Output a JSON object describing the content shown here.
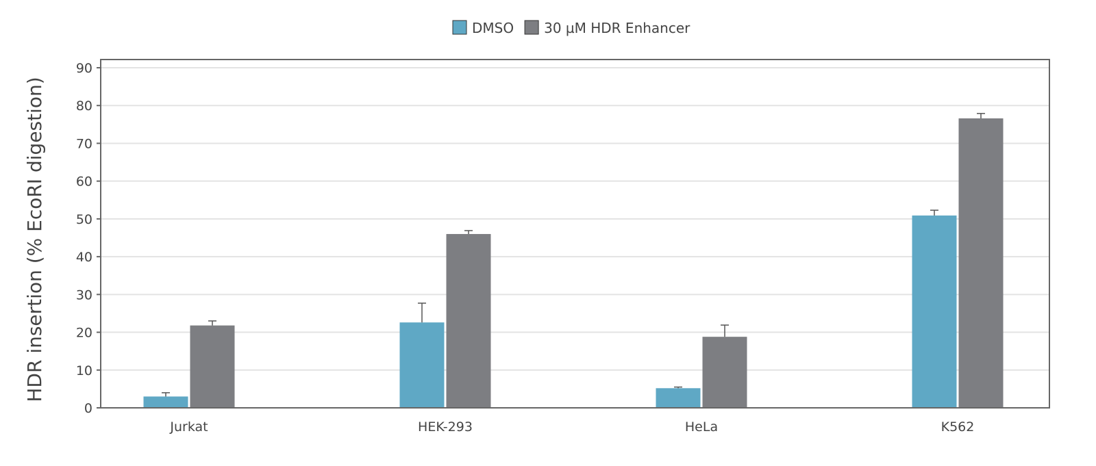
{
  "chart_data": {
    "type": "bar",
    "title": "",
    "xlabel": "",
    "ylabel": "HDR insertion (% EcoRI digestion)",
    "ylim": [
      0,
      90
    ],
    "yticks": [
      0,
      10,
      20,
      30,
      40,
      50,
      60,
      70,
      80,
      90
    ],
    "grid": true,
    "legend_position": "top-center",
    "categories": [
      "Jurkat",
      "HEK-293",
      "HeLa",
      "K562"
    ],
    "series": [
      {
        "name": "DMSO",
        "color": "#5fa8c5",
        "values": [
          3.0,
          22.6,
          5.2,
          50.9
        ],
        "error_upper": [
          4.0,
          27.7,
          5.5,
          52.3
        ]
      },
      {
        "name": "30 µM HDR Enhancer",
        "color": "#7d7e82",
        "values": [
          21.8,
          46.0,
          18.8,
          76.6
        ],
        "error_upper": [
          23.0,
          46.9,
          21.9,
          77.9
        ]
      }
    ]
  }
}
